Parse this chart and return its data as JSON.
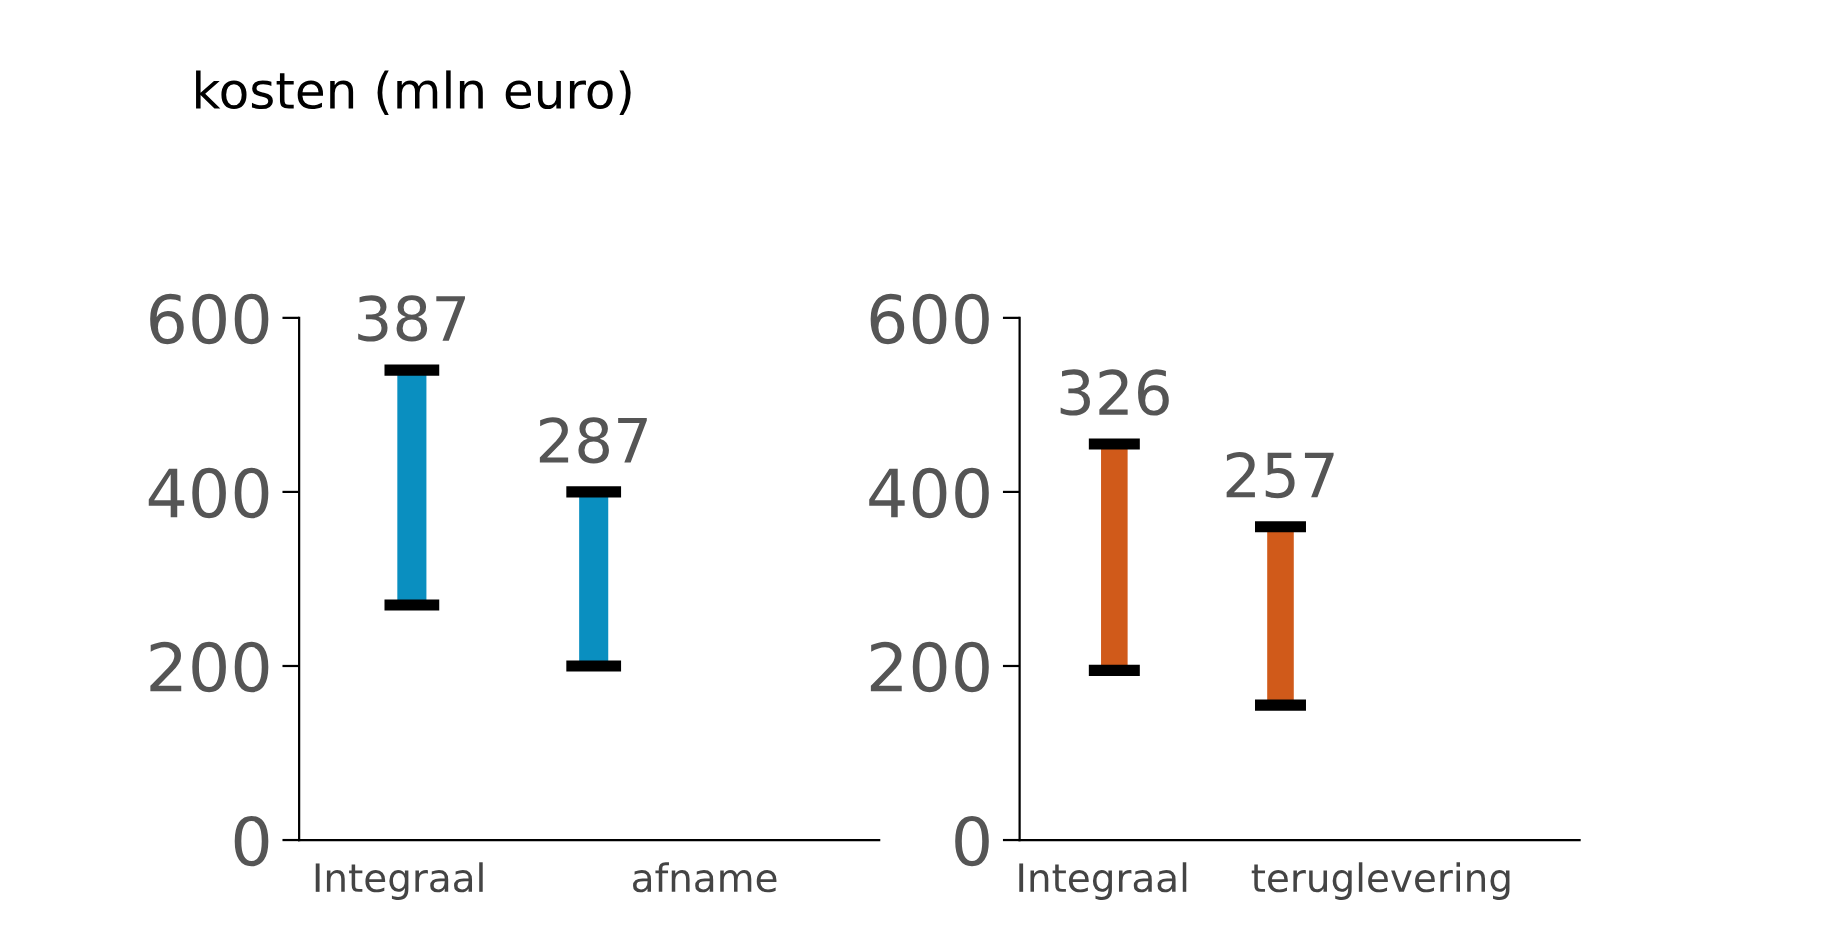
{
  "chart_data": [
    {
      "type": "bar",
      "title": "kosten (mln euro)",
      "categories": [
        "Integraal",
        "afname"
      ],
      "base": [
        270,
        200
      ],
      "values": [
        270,
        200
      ],
      "color": "#0a8fc0",
      "ylim": [
        0,
        600
      ],
      "yticks": [
        0,
        200,
        400,
        600
      ],
      "grid": false,
      "legend": false,
      "annotations": [
        "387",
        "287"
      ]
    },
    {
      "type": "bar",
      "categories": [
        "Integraal",
        "teruglevering"
      ],
      "base": [
        195,
        155
      ],
      "values": [
        260,
        205
      ],
      "color": "#d05a1a",
      "ylim": [
        0,
        600
      ],
      "yticks": [
        0,
        200,
        400,
        600
      ],
      "grid": false,
      "legend": false,
      "annotations": [
        "326",
        "257"
      ]
    }
  ]
}
